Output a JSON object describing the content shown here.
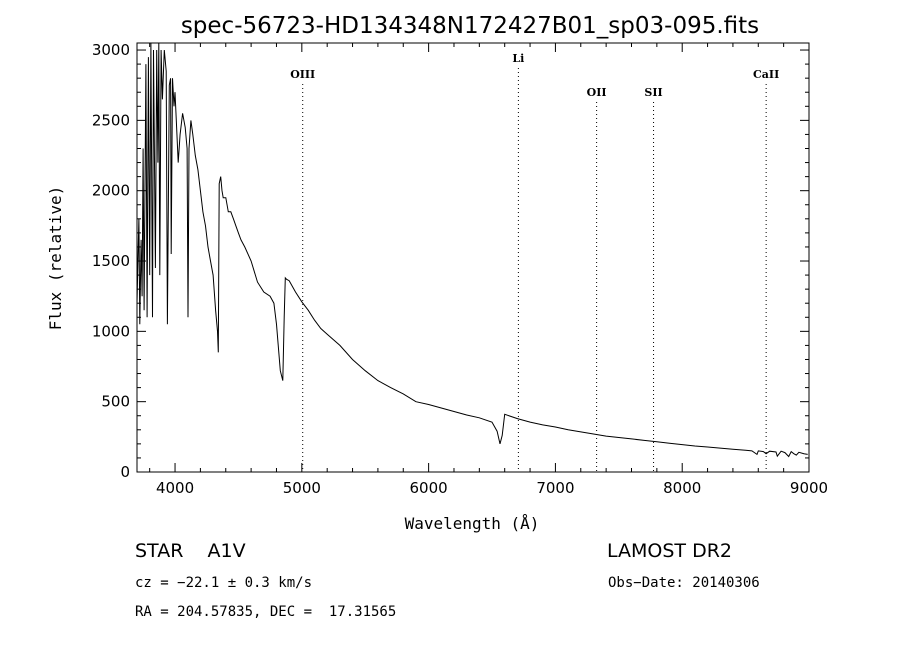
{
  "chart_data": {
    "type": "line",
    "title": "spec-56723-HD134348N172427B01_sp03-095.fits",
    "xlabel": "Wavelength (Å)",
    "ylabel": "Flux (relative)",
    "xlim": [
      3700,
      9000
    ],
    "ylim": [
      0,
      3050
    ],
    "xticks": [
      4000,
      5000,
      6000,
      7000,
      8000,
      9000
    ],
    "yticks": [
      0,
      500,
      1000,
      1500,
      2000,
      2500,
      3000
    ],
    "grid": false,
    "series": [
      {
        "x": [
          3700,
          3715,
          3722,
          3732,
          3740,
          3748,
          3756,
          3770,
          3780,
          3790,
          3800,
          3810,
          3822,
          3830,
          3838,
          3845,
          3855,
          3865,
          3872,
          3880,
          3890,
          3900,
          3915,
          3930,
          3940,
          3955,
          3965,
          3970,
          3980,
          3992,
          4000,
          4010,
          4025,
          4040,
          4060,
          4080,
          4095,
          4102,
          4110,
          4125,
          4140,
          4160,
          4180,
          4200,
          4220,
          4240,
          4260,
          4280,
          4300,
          4320,
          4335,
          4341,
          4348,
          4360,
          4370,
          4380,
          4400,
          4420,
          4440,
          4460,
          4480,
          4500,
          4520,
          4550,
          4600,
          4650,
          4700,
          4750,
          4780,
          4800,
          4830,
          4850,
          4861,
          4870,
          4880,
          4900,
          4950,
          5000,
          5050,
          5100,
          5150,
          5200,
          5300,
          5400,
          5500,
          5600,
          5700,
          5800,
          5900,
          6000,
          6100,
          6200,
          6300,
          6400,
          6500,
          6540,
          6563,
          6580,
          6600,
          6700,
          6800,
          6900,
          7000,
          7100,
          7200,
          7300,
          7400,
          7500,
          7600,
          7700,
          7800,
          7900,
          8000,
          8100,
          8200,
          8300,
          8400,
          8500,
          8550,
          8590,
          8600,
          8640,
          8662,
          8690,
          8740,
          8750,
          8780,
          8810,
          8840,
          8860,
          8880,
          8900,
          8920,
          8960,
          8990
        ],
        "y": [
          1200,
          1800,
          1050,
          1650,
          1250,
          2300,
          1150,
          2900,
          1100,
          2950,
          1400,
          3050,
          1100,
          3000,
          2200,
          1450,
          3000,
          2200,
          3100,
          1400,
          3000,
          2650,
          3000,
          2850,
          1050,
          2750,
          2800,
          1550,
          2800,
          2600,
          2700,
          2500,
          2200,
          2400,
          2550,
          2450,
          2300,
          1100,
          2300,
          2500,
          2400,
          2250,
          2150,
          2000,
          1850,
          1750,
          1600,
          1500,
          1400,
          1150,
          1000,
          850,
          2050,
          2100,
          2000,
          1950,
          1950,
          1850,
          1850,
          1800,
          1750,
          1700,
          1650,
          1600,
          1500,
          1350,
          1280,
          1250,
          1200,
          1050,
          720,
          650,
          1100,
          1380,
          1370,
          1360,
          1280,
          1210,
          1150,
          1080,
          1020,
          980,
          900,
          800,
          720,
          650,
          600,
          555,
          500,
          480,
          455,
          430,
          405,
          385,
          355,
          290,
          200,
          260,
          410,
          380,
          355,
          335,
          320,
          300,
          285,
          270,
          255,
          245,
          235,
          225,
          215,
          205,
          195,
          185,
          178,
          170,
          162,
          155,
          150,
          125,
          150,
          145,
          130,
          148,
          142,
          112,
          148,
          138,
          110,
          145,
          130,
          120,
          140,
          130,
          125
        ]
      }
    ],
    "line_markers": [
      {
        "label": "OIII",
        "x": 5007
      },
      {
        "label": "Li",
        "x": 6708
      },
      {
        "label": "OII",
        "x": 7325
      },
      {
        "label": "SII",
        "x": 7774
      },
      {
        "label": "CaII",
        "x": 8662
      }
    ]
  },
  "info": {
    "object": "STAR    A1V",
    "survey": "LAMOST DR2",
    "cz": "cz = −22.1 ± 0.3 km/s",
    "obs_date": "Obs−Date: 20140306",
    "radec": "RA = 204.57835, DEC =  17.31565"
  }
}
